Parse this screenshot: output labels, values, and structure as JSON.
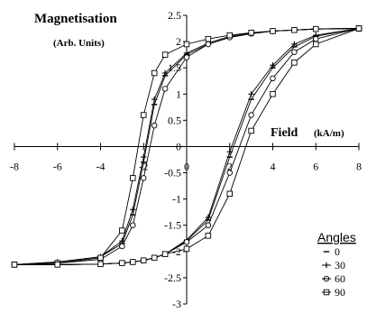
{
  "chart_data": {
    "type": "line",
    "title": "Magnetisation",
    "title_units": "(Arb. Units)",
    "xlabel": "Field",
    "xlabel_units": "(kA/m)",
    "xlim": [
      -8,
      8
    ],
    "ylim": [
      -3,
      2.5
    ],
    "x_ticks": [
      -8,
      -6,
      -4,
      -2,
      0,
      2,
      4,
      6,
      8
    ],
    "x_tick_labels": [
      "-8",
      "-6",
      "-4",
      "-2",
      "0",
      "2",
      "4",
      "6",
      "8"
    ],
    "y_ticks": [
      -3,
      -2.5,
      -2,
      -1.5,
      -1,
      -0.5,
      0,
      0.5,
      1,
      1.5,
      2,
      2.5
    ],
    "y_tick_labels": [
      "-3",
      "-2.5",
      "-2",
      "-1.5",
      "-1",
      "-0.5",
      "0",
      "0.5",
      "1",
      "1.5",
      "2",
      "2.5"
    ],
    "grid": false,
    "legend_title": "Angles",
    "legend_position": "bottom-right",
    "x": [
      -8,
      -6,
      -4,
      -3,
      -2.5,
      -2,
      -1.5,
      -1,
      0,
      1,
      2,
      3,
      4,
      5,
      6,
      8
    ],
    "series": [
      {
        "name": "0",
        "marker": "dash",
        "upper": [
          -2.25,
          -2.2,
          -2.1,
          -1.85,
          -1.3,
          -0.3,
          0.8,
          1.35,
          1.75,
          1.95,
          2.08,
          2.15,
          2.2,
          2.22,
          2.24,
          2.25
        ],
        "lower": [
          -2.25,
          -2.25,
          -2.24,
          -2.22,
          -2.2,
          -2.17,
          -2.12,
          -2.05,
          -1.8,
          -1.4,
          -0.2,
          0.9,
          1.5,
          1.9,
          2.1,
          2.25
        ]
      },
      {
        "name": "30",
        "marker": "plus",
        "upper": [
          -2.25,
          -2.2,
          -2.1,
          -1.8,
          -1.2,
          -0.2,
          0.9,
          1.4,
          1.78,
          1.97,
          2.1,
          2.16,
          2.2,
          2.22,
          2.24,
          2.25
        ],
        "lower": [
          -2.25,
          -2.25,
          -2.24,
          -2.22,
          -2.2,
          -2.17,
          -2.12,
          -2.05,
          -1.78,
          -1.35,
          -0.1,
          1.0,
          1.55,
          1.95,
          2.12,
          2.25
        ]
      },
      {
        "name": "60",
        "marker": "circle",
        "upper": [
          -2.25,
          -2.22,
          -2.15,
          -1.9,
          -1.5,
          -0.6,
          0.4,
          1.1,
          1.7,
          1.95,
          2.08,
          2.15,
          2.2,
          2.22,
          2.24,
          2.25
        ],
        "lower": [
          -2.25,
          -2.25,
          -2.24,
          -2.22,
          -2.2,
          -2.17,
          -2.12,
          -2.05,
          -1.82,
          -1.5,
          -0.5,
          0.6,
          1.3,
          1.8,
          2.05,
          2.25
        ]
      },
      {
        "name": "90",
        "marker": "square",
        "upper": [
          -2.25,
          -2.22,
          -2.12,
          -1.6,
          -0.6,
          0.6,
          1.4,
          1.75,
          1.95,
          2.05,
          2.12,
          2.17,
          2.2,
          2.22,
          2.24,
          2.25
        ],
        "lower": [
          -2.25,
          -2.25,
          -2.24,
          -2.22,
          -2.2,
          -2.17,
          -2.12,
          -2.05,
          -1.95,
          -1.7,
          -0.9,
          0.3,
          1.0,
          1.6,
          1.95,
          2.25
        ]
      }
    ]
  }
}
